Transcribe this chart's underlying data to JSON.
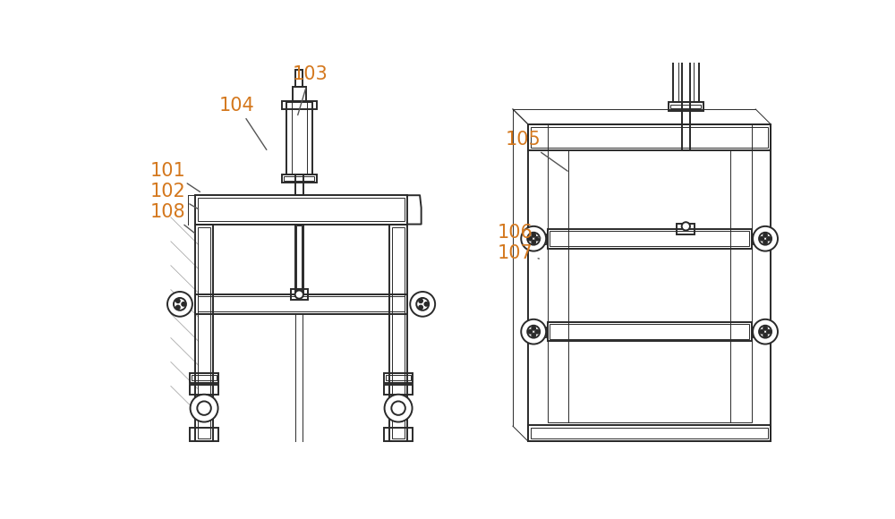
{
  "bg_color": "#ffffff",
  "lc": "#2a2a2a",
  "lc2": "#444444",
  "label_color": "#d4781e",
  "lw": 1.4,
  "tlw": 0.7,
  "fig_width": 10.0,
  "fig_height": 5.8
}
